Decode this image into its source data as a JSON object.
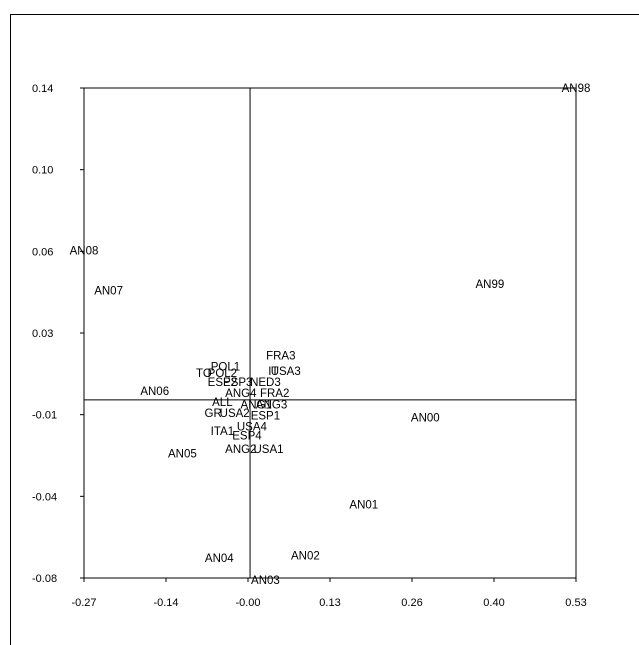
{
  "chart_data": {
    "type": "scatter",
    "title": "",
    "xlabel": "",
    "ylabel": "",
    "xlim": [
      -0.27,
      0.53
    ],
    "ylim": [
      -0.08,
      0.14
    ],
    "grid": false,
    "x_ticks": [
      "-0.27",
      "-0.14",
      "-0.00",
      "0.13",
      "0.26",
      "0.40",
      "0.53"
    ],
    "y_ticks": [
      "0.14",
      "0.10",
      "0.06",
      "0.03",
      "-0.01",
      "-0.04",
      "-0.08"
    ],
    "reference_lines": {
      "x": 0.0,
      "y": 0.0
    },
    "points": [
      {
        "label": "AN98",
        "x": 0.53,
        "y": 0.14
      },
      {
        "label": "AN08",
        "x": -0.27,
        "y": 0.067
      },
      {
        "label": "AN07",
        "x": -0.23,
        "y": 0.049
      },
      {
        "label": "AN99",
        "x": 0.39,
        "y": 0.052
      },
      {
        "label": "AN06",
        "x": -0.155,
        "y": 0.004
      },
      {
        "label": "AN00",
        "x": 0.285,
        "y": -0.008
      },
      {
        "label": "AN05",
        "x": -0.11,
        "y": -0.024
      },
      {
        "label": "AN01",
        "x": 0.185,
        "y": -0.047
      },
      {
        "label": "AN02",
        "x": 0.09,
        "y": -0.07
      },
      {
        "label": "AN04",
        "x": -0.05,
        "y": -0.071
      },
      {
        "label": "AN03",
        "x": 0.025,
        "y": -0.081
      },
      {
        "label": "FRA3",
        "x": 0.05,
        "y": 0.02
      },
      {
        "label": "IT",
        "x": 0.038,
        "y": 0.013
      },
      {
        "label": "USA3",
        "x": 0.058,
        "y": 0.013
      },
      {
        "label": "POL1",
        "x": -0.04,
        "y": 0.015
      },
      {
        "label": "TO",
        "x": -0.075,
        "y": 0.012
      },
      {
        "label": "POL2",
        "x": -0.045,
        "y": 0.012
      },
      {
        "label": "ESP2",
        "x": -0.045,
        "y": 0.008
      },
      {
        "label": "ESP3",
        "x": -0.02,
        "y": 0.008
      },
      {
        "label": "NED3",
        "x": 0.025,
        "y": 0.008
      },
      {
        "label": "ANG4",
        "x": -0.015,
        "y": 0.003
      },
      {
        "label": "FRA2",
        "x": 0.04,
        "y": 0.003
      },
      {
        "label": "ALL",
        "x": -0.045,
        "y": -0.001
      },
      {
        "label": "ANG1",
        "x": 0.01,
        "y": -0.002
      },
      {
        "label": "ANG3",
        "x": 0.035,
        "y": -0.002
      },
      {
        "label": "GR",
        "x": -0.06,
        "y": -0.006
      },
      {
        "label": "USA2",
        "x": -0.025,
        "y": -0.006
      },
      {
        "label": "ESP1",
        "x": 0.025,
        "y": -0.007
      },
      {
        "label": "ITA1",
        "x": -0.045,
        "y": -0.014
      },
      {
        "label": "USA4",
        "x": 0.003,
        "y": -0.012
      },
      {
        "label": "ESP4",
        "x": -0.005,
        "y": -0.016
      },
      {
        "label": "ANG2",
        "x": -0.015,
        "y": -0.022
      },
      {
        "label": "USA1",
        "x": 0.03,
        "y": -0.022
      }
    ]
  }
}
